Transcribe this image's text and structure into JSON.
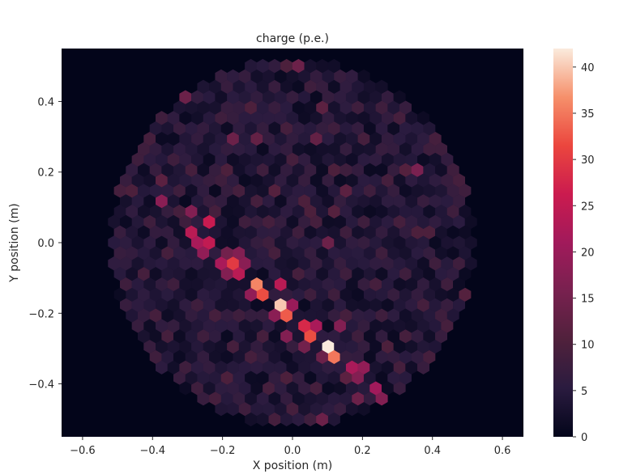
{
  "chart_data": {
    "type": "heatmap",
    "plot_style": "hexbin",
    "title": "charge (p.e.)",
    "xlabel": "X position (m)",
    "ylabel": "Y position (m)",
    "xlim": [
      -0.66,
      0.66
    ],
    "ylim": [
      -0.55,
      0.55
    ],
    "x_ticks": [
      -0.6,
      -0.4,
      -0.2,
      0.0,
      0.2,
      0.4,
      0.6
    ],
    "x_tick_labels": [
      "−0.6",
      "−0.4",
      "−0.2",
      "0.0",
      "0.2",
      "0.4",
      "0.6"
    ],
    "y_ticks": [
      0.4,
      0.2,
      0.0,
      -0.2,
      -0.4
    ],
    "y_tick_labels": [
      "0.4",
      "0.2",
      "0.0",
      "−0.2",
      "−0.4"
    ],
    "grid": false,
    "colormap": "rocket",
    "colorbar": {
      "range": [
        0,
        42
      ],
      "ticks": [
        0,
        5,
        10,
        15,
        20,
        25,
        30,
        35,
        40
      ],
      "tick_labels": [
        "0",
        "5",
        "10",
        "15",
        "20",
        "25",
        "30",
        "35",
        "40"
      ]
    },
    "hex_pitch_x": 0.034,
    "camera_radius": 0.52,
    "points": [
      {
        "x": -0.37,
        "y": 0.12,
        "v": 18
      },
      {
        "x": -0.33,
        "y": 0.08,
        "v": 9
      },
      {
        "x": -0.31,
        "y": 0.15,
        "v": 8
      },
      {
        "x": -0.29,
        "y": 0.06,
        "v": 8
      },
      {
        "x": -0.28,
        "y": 0.1,
        "v": 17
      },
      {
        "x": -0.3,
        "y": 0.03,
        "v": 24
      },
      {
        "x": -0.25,
        "y": 0.05,
        "v": 26
      },
      {
        "x": -0.28,
        "y": 0.0,
        "v": 22
      },
      {
        "x": -0.23,
        "y": 0.0,
        "v": 25
      },
      {
        "x": -0.27,
        "y": -0.04,
        "v": 19
      },
      {
        "x": -0.21,
        "y": -0.05,
        "v": 22
      },
      {
        "x": -0.18,
        "y": -0.02,
        "v": 15
      },
      {
        "x": -0.17,
        "y": -0.06,
        "v": 30
      },
      {
        "x": -0.14,
        "y": -0.02,
        "v": 17
      },
      {
        "x": -0.12,
        "y": -0.06,
        "v": 18
      },
      {
        "x": -0.2,
        "y": -0.1,
        "v": 17
      },
      {
        "x": -0.15,
        "y": -0.1,
        "v": 24
      },
      {
        "x": -0.1,
        "y": -0.11,
        "v": 36
      },
      {
        "x": -0.05,
        "y": -0.12,
        "v": 24
      },
      {
        "x": -0.13,
        "y": -0.14,
        "v": 19
      },
      {
        "x": -0.08,
        "y": -0.16,
        "v": 32
      },
      {
        "x": -0.03,
        "y": -0.17,
        "v": 40
      },
      {
        "x": 0.01,
        "y": -0.18,
        "v": 20
      },
      {
        "x": -0.06,
        "y": -0.2,
        "v": 18
      },
      {
        "x": -0.02,
        "y": -0.21,
        "v": 33
      },
      {
        "x": 0.03,
        "y": -0.23,
        "v": 28
      },
      {
        "x": 0.08,
        "y": -0.23,
        "v": 22
      },
      {
        "x": 0.13,
        "y": -0.24,
        "v": 17
      },
      {
        "x": -0.01,
        "y": -0.25,
        "v": 17
      },
      {
        "x": 0.05,
        "y": -0.27,
        "v": 32
      },
      {
        "x": 0.1,
        "y": -0.28,
        "v": 42
      },
      {
        "x": 0.03,
        "y": -0.31,
        "v": 15
      },
      {
        "x": 0.07,
        "y": -0.32,
        "v": 14
      },
      {
        "x": 0.11,
        "y": -0.33,
        "v": 35
      },
      {
        "x": 0.16,
        "y": -0.34,
        "v": 22
      },
      {
        "x": 0.21,
        "y": -0.35,
        "v": 19
      },
      {
        "x": 0.15,
        "y": -0.38,
        "v": 12
      },
      {
        "x": 0.19,
        "y": -0.39,
        "v": 17
      },
      {
        "x": 0.23,
        "y": -0.4,
        "v": 21
      },
      {
        "x": 0.18,
        "y": -0.43,
        "v": 14
      },
      {
        "x": 0.24,
        "y": -0.44,
        "v": 17
      },
      {
        "x": 0.09,
        "y": -0.5,
        "v": 14
      },
      {
        "x": -0.29,
        "y": 0.41,
        "v": 14
      },
      {
        "x": -0.16,
        "y": 0.29,
        "v": 14
      },
      {
        "x": -0.1,
        "y": 0.29,
        "v": 13
      },
      {
        "x": -0.02,
        "y": 0.49,
        "v": 10
      },
      {
        "x": 0.02,
        "y": 0.49,
        "v": 14
      },
      {
        "x": 0.1,
        "y": 0.39,
        "v": 12
      },
      {
        "x": 0.08,
        "y": 0.3,
        "v": 13
      },
      {
        "x": 0.11,
        "y": 0.2,
        "v": 10
      },
      {
        "x": 0.17,
        "y": 0.15,
        "v": 12
      },
      {
        "x": 0.12,
        "y": 0.07,
        "v": 11
      },
      {
        "x": 0.1,
        "y": -0.01,
        "v": 14
      },
      {
        "x": 0.05,
        "y": 0.08,
        "v": 10
      },
      {
        "x": 0.03,
        "y": 0.13,
        "v": 10
      },
      {
        "x": -0.04,
        "y": 0.14,
        "v": 11
      },
      {
        "x": -0.17,
        "y": 0.21,
        "v": 10
      },
      {
        "x": 0.32,
        "y": 0.2,
        "v": 11
      },
      {
        "x": 0.37,
        "y": 0.2,
        "v": 16
      },
      {
        "x": 0.36,
        "y": 0.02,
        "v": 10
      },
      {
        "x": 0.4,
        "y": 0.03,
        "v": 10
      },
      {
        "x": -0.38,
        "y": 0.19,
        "v": 12
      },
      {
        "x": -0.45,
        "y": 0.16,
        "v": 10
      },
      {
        "x": -0.53,
        "y": 0.14,
        "v": 9
      },
      {
        "x": -0.52,
        "y": 0.28,
        "v": 8
      },
      {
        "x": -0.46,
        "y": 0.31,
        "v": 9
      },
      {
        "x": -0.4,
        "y": 0.38,
        "v": 8
      },
      {
        "x": -0.22,
        "y": 0.35,
        "v": 8
      },
      {
        "x": -0.12,
        "y": 0.39,
        "v": 10
      },
      {
        "x": -0.02,
        "y": 0.33,
        "v": 9
      },
      {
        "x": 0.05,
        "y": 0.43,
        "v": 8
      },
      {
        "x": 0.18,
        "y": 0.39,
        "v": 8
      },
      {
        "x": 0.25,
        "y": 0.39,
        "v": 8
      },
      {
        "x": 0.31,
        "y": 0.35,
        "v": 9
      },
      {
        "x": 0.42,
        "y": 0.32,
        "v": 9
      },
      {
        "x": 0.47,
        "y": 0.3,
        "v": 8
      },
      {
        "x": 0.49,
        "y": 0.17,
        "v": 9
      },
      {
        "x": 0.51,
        "y": 0.12,
        "v": 8
      },
      {
        "x": 0.45,
        "y": 0.08,
        "v": 8
      },
      {
        "x": 0.49,
        "y": -0.07,
        "v": 8
      },
      {
        "x": 0.51,
        "y": -0.14,
        "v": 11
      },
      {
        "x": 0.51,
        "y": -0.26,
        "v": 9
      },
      {
        "x": 0.38,
        "y": -0.33,
        "v": 9
      },
      {
        "x": 0.31,
        "y": -0.37,
        "v": 9
      },
      {
        "x": -0.42,
        "y": -0.08,
        "v": 9
      },
      {
        "x": -0.48,
        "y": -0.13,
        "v": 8
      },
      {
        "x": -0.4,
        "y": -0.2,
        "v": 9
      },
      {
        "x": -0.35,
        "y": -0.25,
        "v": 9
      },
      {
        "x": -0.48,
        "y": -0.25,
        "v": 7
      },
      {
        "x": -0.38,
        "y": -0.32,
        "v": 8
      },
      {
        "x": -0.3,
        "y": -0.35,
        "v": 8
      },
      {
        "x": -0.26,
        "y": -0.41,
        "v": 8
      },
      {
        "x": -0.19,
        "y": -0.37,
        "v": 10
      },
      {
        "x": -0.12,
        "y": -0.33,
        "v": 9
      },
      {
        "x": -0.08,
        "y": -0.42,
        "v": 9
      },
      {
        "x": 0.0,
        "y": -0.46,
        "v": 9
      },
      {
        "x": -0.22,
        "y": -0.46,
        "v": 9
      },
      {
        "x": -0.14,
        "y": -0.48,
        "v": 8
      },
      {
        "x": -0.05,
        "y": -0.51,
        "v": 9
      },
      {
        "x": 0.04,
        "y": -0.52,
        "v": 8
      },
      {
        "x": -0.01,
        "y": -0.39,
        "v": 10
      },
      {
        "x": 0.07,
        "y": -0.42,
        "v": 9
      },
      {
        "x": 0.28,
        "y": -0.28,
        "v": 10
      },
      {
        "x": 0.33,
        "y": -0.25,
        "v": 9
      },
      {
        "x": 0.2,
        "y": -0.27,
        "v": 8
      },
      {
        "x": 0.25,
        "y": -0.19,
        "v": 8
      },
      {
        "x": 0.15,
        "y": -0.2,
        "v": 9
      },
      {
        "x": 0.05,
        "y": -0.14,
        "v": 8
      },
      {
        "x": 0.12,
        "y": -0.16,
        "v": 8
      },
      {
        "x": 0.02,
        "y": -0.09,
        "v": 9
      },
      {
        "x": -0.04,
        "y": -0.02,
        "v": 9
      },
      {
        "x": 0.02,
        "y": 0.02,
        "v": 8
      },
      {
        "x": 0.08,
        "y": 0.05,
        "v": 9
      },
      {
        "x": 0.15,
        "y": 0.02,
        "v": 8
      },
      {
        "x": 0.21,
        "y": 0.06,
        "v": 8
      },
      {
        "x": 0.26,
        "y": -0.02,
        "v": 8
      },
      {
        "x": 0.3,
        "y": 0.05,
        "v": 9
      },
      {
        "x": 0.22,
        "y": 0.14,
        "v": 8
      },
      {
        "x": 0.28,
        "y": 0.18,
        "v": 9
      },
      {
        "x": 0.15,
        "y": 0.22,
        "v": 8
      },
      {
        "x": 0.2,
        "y": 0.29,
        "v": 9
      },
      {
        "x": 0.13,
        "y": 0.32,
        "v": 8
      },
      {
        "x": 0.0,
        "y": 0.22,
        "v": 9
      },
      {
        "x": -0.07,
        "y": 0.2,
        "v": 8
      },
      {
        "x": -0.1,
        "y": 0.12,
        "v": 9
      },
      {
        "x": -0.16,
        "y": 0.14,
        "v": 9
      },
      {
        "x": -0.22,
        "y": 0.18,
        "v": 8
      },
      {
        "x": -0.28,
        "y": 0.21,
        "v": 9
      },
      {
        "x": -0.34,
        "y": 0.24,
        "v": 8
      },
      {
        "x": -0.42,
        "y": 0.25,
        "v": 8
      },
      {
        "x": -0.21,
        "y": 0.09,
        "v": 9
      },
      {
        "x": -0.14,
        "y": 0.06,
        "v": 8
      },
      {
        "x": -0.07,
        "y": 0.06,
        "v": 9
      },
      {
        "x": -0.07,
        "y": 0.01,
        "v": 8
      },
      {
        "x": -0.36,
        "y": -0.02,
        "v": 9
      },
      {
        "x": -0.42,
        "y": 0.06,
        "v": 8
      },
      {
        "x": -0.48,
        "y": 0.04,
        "v": 7
      },
      {
        "x": -0.34,
        "y": -0.12,
        "v": 8
      },
      {
        "x": -0.27,
        "y": -0.16,
        "v": 8
      },
      {
        "x": -0.21,
        "y": -0.2,
        "v": 9
      },
      {
        "x": -0.15,
        "y": -0.22,
        "v": 8
      },
      {
        "x": -0.25,
        "y": -0.27,
        "v": 8
      },
      {
        "x": -0.18,
        "y": -0.29,
        "v": 9
      },
      {
        "x": -0.09,
        "y": -0.27,
        "v": 9
      },
      {
        "x": 0.16,
        "y": -0.1,
        "v": 8
      },
      {
        "x": 0.23,
        "y": -0.12,
        "v": 9
      },
      {
        "x": 0.31,
        "y": -0.1,
        "v": 8
      },
      {
        "x": 0.36,
        "y": -0.18,
        "v": 9
      },
      {
        "x": 0.43,
        "y": -0.2,
        "v": 8
      },
      {
        "x": 0.44,
        "y": -0.12,
        "v": 8
      },
      {
        "x": 0.4,
        "y": -0.05,
        "v": 8
      },
      {
        "x": 0.45,
        "y": 0.22,
        "v": 8
      },
      {
        "x": 0.38,
        "y": 0.27,
        "v": 8
      },
      {
        "x": 0.26,
        "y": 0.27,
        "v": 7
      },
      {
        "x": 0.36,
        "y": 0.12,
        "v": 7
      },
      {
        "x": 0.44,
        "y": -0.28,
        "v": 7
      },
      {
        "x": 0.15,
        "y": 0.46,
        "v": 7
      },
      {
        "x": -0.05,
        "y": 0.44,
        "v": 7
      },
      {
        "x": -0.19,
        "y": 0.44,
        "v": 7
      },
      {
        "x": -0.33,
        "y": 0.33,
        "v": 7
      },
      {
        "x": -0.5,
        "y": 0.2,
        "v": 7
      },
      {
        "x": -0.52,
        "y": -0.03,
        "v": 7
      },
      {
        "x": -0.5,
        "y": -0.2,
        "v": 7
      },
      {
        "x": -0.44,
        "y": -0.3,
        "v": 7
      },
      {
        "x": -0.34,
        "y": -0.4,
        "v": 7
      },
      {
        "x": -0.28,
        "y": -0.47,
        "v": 7
      },
      {
        "x": 0.14,
        "y": -0.48,
        "v": 7
      },
      {
        "x": 0.3,
        "y": -0.44,
        "v": 7
      },
      {
        "x": 0.38,
        "y": -0.4,
        "v": 7
      }
    ]
  }
}
